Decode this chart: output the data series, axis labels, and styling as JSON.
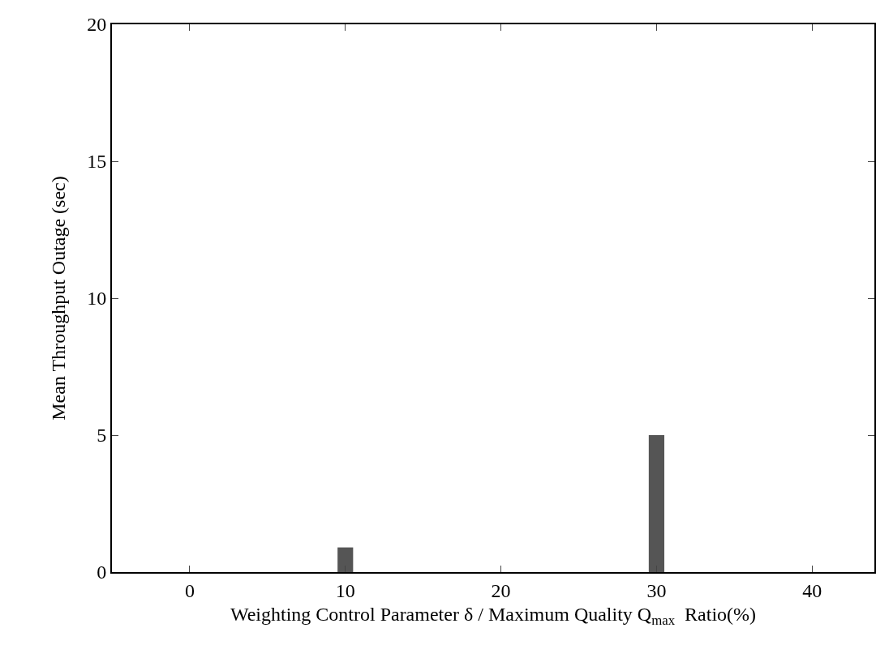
{
  "chart_data": {
    "type": "bar",
    "xlabel": "Weighting Control Parameter δ / Maximum Quality Q$_{max}$  Ratio(%)",
    "ylabel": "Mean Throughput Outage (sec)",
    "x": [
      0,
      10,
      20,
      30,
      40
    ],
    "values": [
      0,
      0.9,
      0,
      5,
      0
    ],
    "color": "#555555",
    "xlim": [
      -5,
      44
    ],
    "xticks": [
      0,
      10,
      20,
      30,
      40
    ],
    "ylim": [
      0,
      20
    ],
    "yticks": [
      0,
      5,
      10,
      15,
      20
    ],
    "grid": false,
    "legend": false
  }
}
